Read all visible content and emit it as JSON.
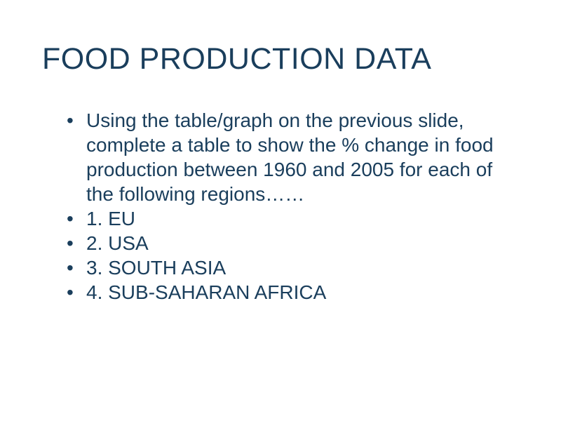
{
  "slide": {
    "title": "FOOD PRODUCTION DATA",
    "title_color": "#1a3e5c",
    "title_fontsize": 43,
    "title_fontweight": "normal",
    "body_color": "#1a3e5c",
    "body_fontsize": 28,
    "background_color": "#ffffff",
    "bullets": [
      "Using the table/graph on the previous slide, complete a table to show the % change in food production between 1960 and 2005 for each of the following regions……",
      "1. EU",
      "2. USA",
      "3. SOUTH ASIA",
      "4. SUB-SAHARAN AFRICA"
    ]
  }
}
